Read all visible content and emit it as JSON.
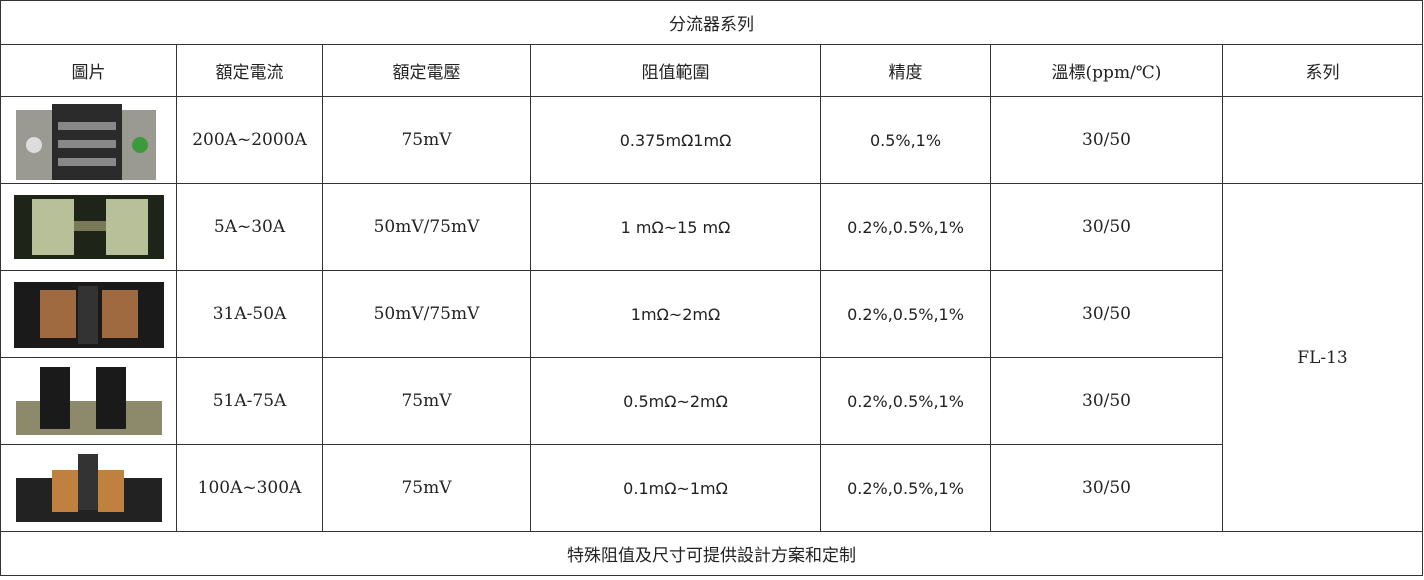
{
  "table": {
    "title": "分流器系列",
    "headers": [
      "圖片",
      "額定電流",
      "額定電壓",
      "阻值範圍",
      "精度",
      "溫標(ppm/℃)",
      "系列"
    ],
    "rows": [
      [
        "200A~2000A",
        "75mV",
        "0.375mΩ1mΩ",
        "0.5%,1%",
        "30/50"
      ],
      [
        "5A~30A",
        "50mV/75mV",
        "1 mΩ~15 mΩ",
        "0.2%,0.5%,1%",
        "30/50"
      ],
      [
        "31A-50A",
        "50mV/75mV",
        "1mΩ~2mΩ",
        "0.2%,0.5%,1%",
        "30/50"
      ],
      [
        "51A-75A",
        "75mV",
        "0.5mΩ~2mΩ",
        "0.2%,0.5%,1%",
        "30/50"
      ],
      [
        "100A~300A",
        "75mV",
        "0.1mΩ~1mΩ",
        "0.2%,0.5%,1%",
        "30/50"
      ]
    ],
    "series": "FL-13",
    "footer": "特殊阻值及尺寸可提供設計方案和定制"
  }
}
